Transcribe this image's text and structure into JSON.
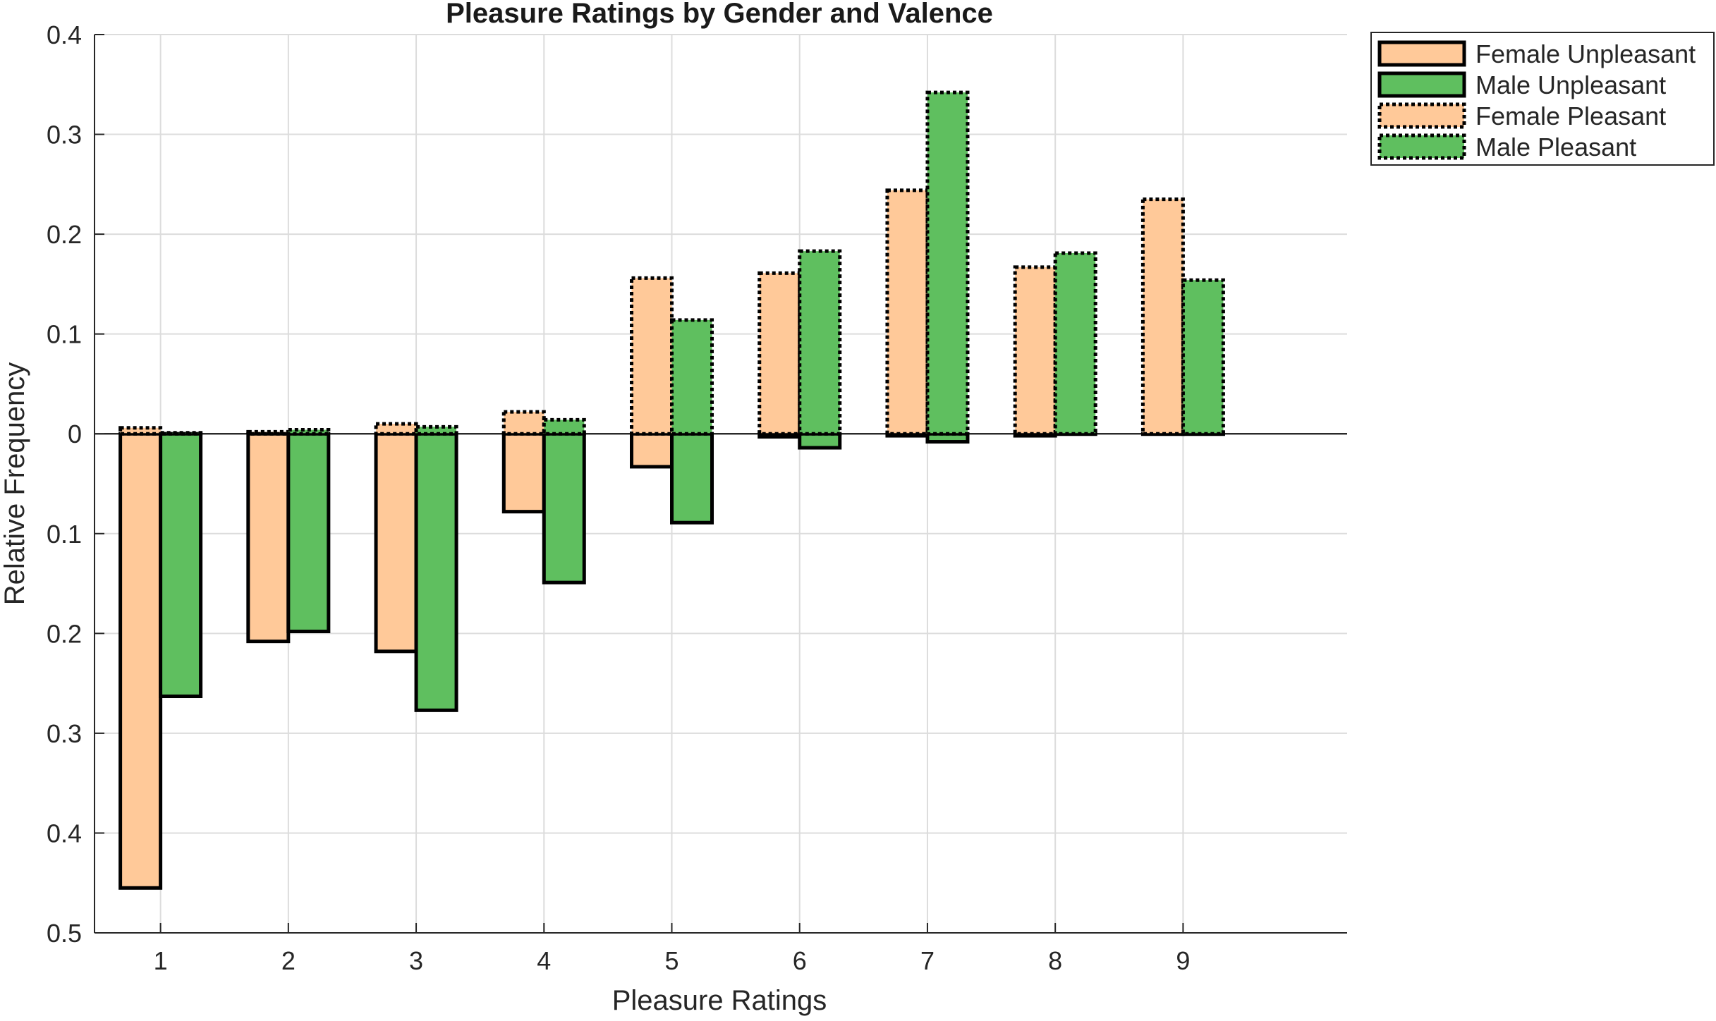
{
  "chart_data": {
    "type": "bar",
    "title": "Pleasure Ratings by Gender and Valence",
    "xlabel": "Pleasure Ratings",
    "ylabel": "Relative Frequency",
    "categories": [
      "1",
      "2",
      "3",
      "4",
      "5",
      "6",
      "7",
      "8",
      "9"
    ],
    "ylim": [
      -0.5,
      0.4
    ],
    "yticks": [
      0.4,
      0.3,
      0.2,
      0.1,
      0,
      -0.1,
      -0.2,
      -0.3,
      -0.4,
      -0.5
    ],
    "ytick_labels": [
      "0.4",
      "0.3",
      "0.2",
      "0.1",
      "0",
      "0.1",
      "0.2",
      "0.3",
      "0.4",
      "0.5"
    ],
    "grid": true,
    "legend_position": "outside-top-right",
    "series": [
      {
        "name": "Female Unpleasant",
        "group": "female",
        "valence": "unpleasant",
        "fill": "#FFC999",
        "edge": "solid",
        "values": [
          -0.455,
          -0.208,
          -0.218,
          -0.078,
          -0.033,
          -0.003,
          -0.002,
          -0.002,
          0
        ]
      },
      {
        "name": "Male Unpleasant",
        "group": "male",
        "valence": "unpleasant",
        "fill": "#5FBF5F",
        "edge": "solid",
        "values": [
          -0.263,
          -0.198,
          -0.277,
          -0.149,
          -0.089,
          -0.014,
          -0.008,
          0,
          0
        ]
      },
      {
        "name": "Female Pleasant",
        "group": "female",
        "valence": "pleasant",
        "fill": "#FFC999",
        "edge": "dotted",
        "values": [
          0.006,
          0.002,
          0.01,
          0.022,
          0.156,
          0.161,
          0.244,
          0.167,
          0.235
        ]
      },
      {
        "name": "Male Pleasant",
        "group": "male",
        "valence": "pleasant",
        "fill": "#5FBF5F",
        "edge": "dotted",
        "values": [
          0.001,
          0.004,
          0.007,
          0.014,
          0.114,
          0.183,
          0.342,
          0.181,
          0.154
        ]
      }
    ]
  }
}
